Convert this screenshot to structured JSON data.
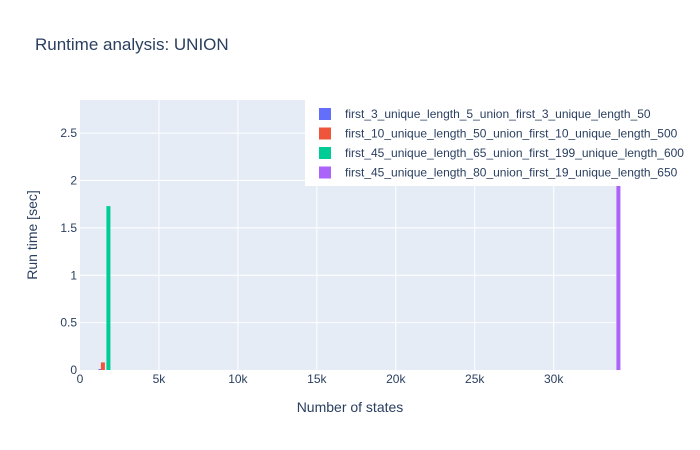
{
  "chart_data": {
    "type": "bar",
    "title": "Runtime analysis: UNION",
    "xlabel": "Number of states",
    "ylabel": "Run time [sec]",
    "xlim": [
      0,
      34200
    ],
    "ylim": [
      0,
      2.85
    ],
    "x_ticks": [
      0,
      5000,
      10000,
      15000,
      20000,
      25000,
      30000
    ],
    "x_tick_labels": [
      "0",
      "5k",
      "10k",
      "15k",
      "20k",
      "25k",
      "30k"
    ],
    "y_ticks": [
      0,
      0.5,
      1,
      1.5,
      2,
      2.5
    ],
    "y_tick_labels": [
      "0",
      "0.5",
      "1",
      "1.5",
      "2",
      "2.5"
    ],
    "grid": true,
    "legend_position": "top-right",
    "series": [
      {
        "name": "first_3_unique_length_5_union_first_3_unique_length_50",
        "x": 1300,
        "value": 0.01,
        "color": "#636efa"
      },
      {
        "name": "first_10_unique_length_50_union_first_10_unique_length_500",
        "x": 1450,
        "value": 0.08,
        "color": "#EF553B"
      },
      {
        "name": "first_45_unique_length_65_union_first_199_unique_length_600",
        "x": 1800,
        "value": 1.73,
        "color": "#00cc96"
      },
      {
        "name": "first_45_unique_length_80_union_first_19_unique_length_650",
        "x": 34100,
        "value": 2.6,
        "color": "#ab63fa"
      }
    ]
  }
}
